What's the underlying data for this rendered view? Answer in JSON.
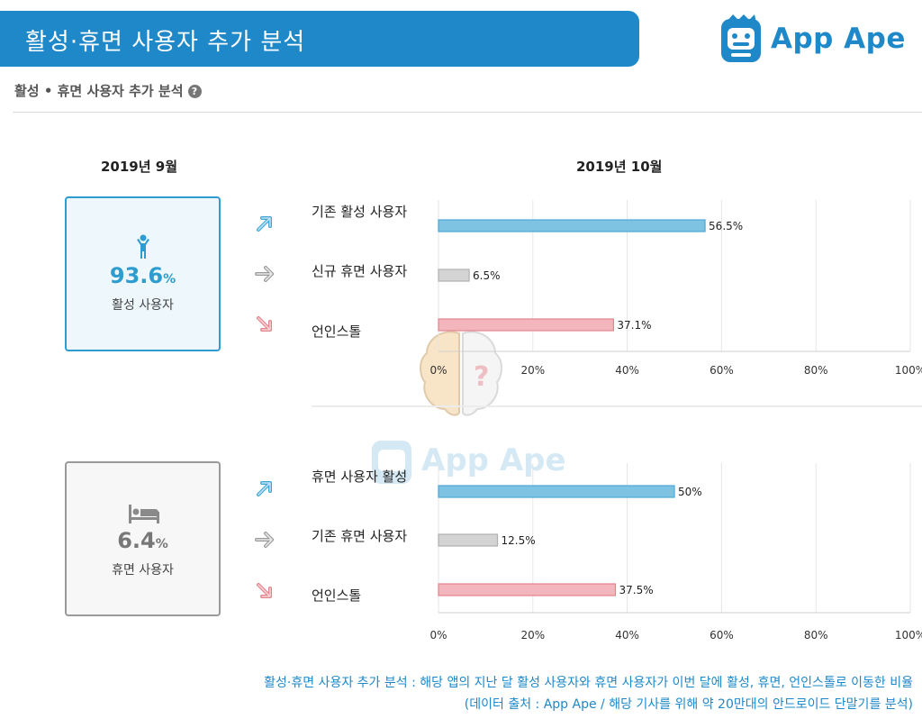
{
  "header": {
    "title": "활성·휴면 사용자 추가 분석",
    "logo_text": "App Ape"
  },
  "subheader": {
    "text": "활성 • 휴면 사용자 추가 분석",
    "help_glyph": "?"
  },
  "prev_month": "2019년 9월",
  "curr_month": "2019년 10월",
  "active_box": {
    "percent": "93.6",
    "unit": "%",
    "label": "활성 사용자"
  },
  "dormant_box": {
    "percent": "6.4",
    "unit": "%",
    "label": "휴면 사용자"
  },
  "watermark_text": "App Ape",
  "colors": {
    "brand": "#1e88c8",
    "blue_bar": "#7ec4e2",
    "blue_bar_dark": "#4ea8d4",
    "gray_bar": "#d4d4d4",
    "gray_bar_dark": "#b0b0b0",
    "red_bar": "#f3b6bc",
    "red_bar_dark": "#e3848e",
    "grid": "#e6e6e6"
  },
  "chart_data": [
    {
      "type": "bar",
      "orientation": "horizontal",
      "categories": [
        "기존 활성 사용자",
        "신규 휴면 사용자",
        "언인스톨"
      ],
      "values": [
        56.5,
        6.5,
        37.1
      ],
      "value_labels": [
        "56.5%",
        "6.5%",
        "37.1%"
      ],
      "bar_colors": [
        "blue",
        "gray",
        "red"
      ],
      "xlim": [
        0,
        100
      ],
      "x_ticks": [
        0,
        20,
        40,
        60,
        80,
        100
      ],
      "x_tick_labels": [
        "0%",
        "20%",
        "40%",
        "60%",
        "80%",
        "100%"
      ],
      "grid": true
    },
    {
      "type": "bar",
      "orientation": "horizontal",
      "categories": [
        "휴면 사용자 활성",
        "기존 휴면 사용자",
        "언인스톨"
      ],
      "values": [
        50,
        12.5,
        37.5
      ],
      "value_labels": [
        "50%",
        "12.5%",
        "37.5%"
      ],
      "bar_colors": [
        "blue",
        "gray",
        "red"
      ],
      "xlim": [
        0,
        100
      ],
      "x_ticks": [
        0,
        20,
        40,
        60,
        80,
        100
      ],
      "x_tick_labels": [
        "0%",
        "20%",
        "40%",
        "60%",
        "80%",
        "100%"
      ],
      "grid": true
    }
  ],
  "footnote": {
    "line1": "활성·휴면 사용자 추가 분석 : 해당 앱의 지난 달 활성 사용자와 휴면 사용자가 이번 달에 활성, 휴면, 언인스톨로 이동한 비율",
    "line2": "(데이터 출처 : App Ape / 해당 기사를 위해 약 20만대의 안드로이드 단말기를 분석)"
  }
}
